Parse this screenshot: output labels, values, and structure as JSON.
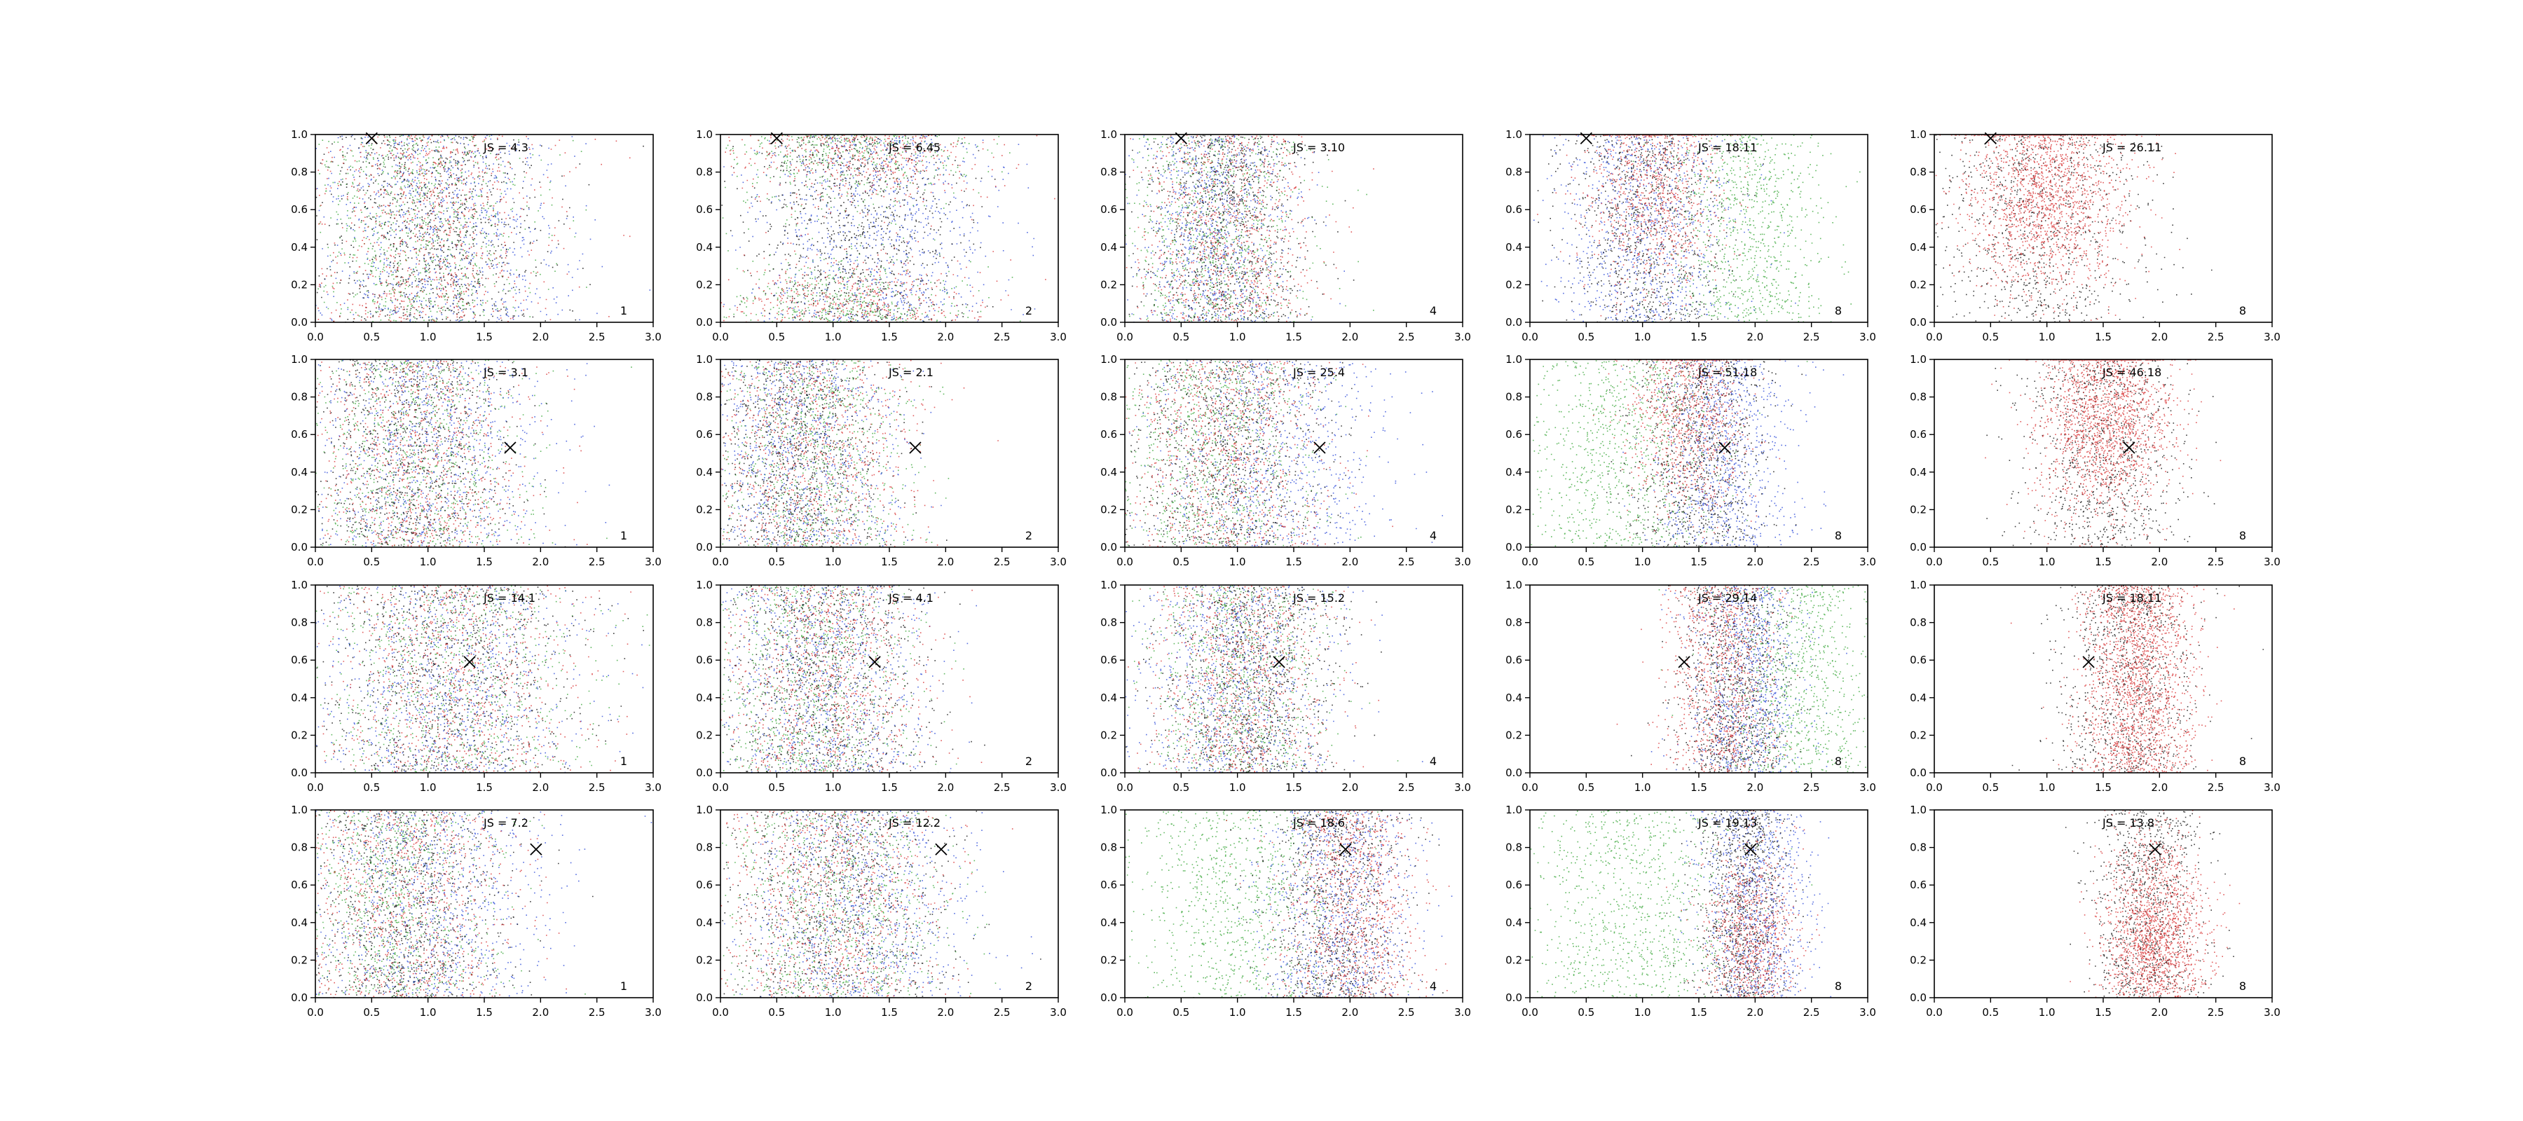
{
  "chart_data": {
    "type": "scatter",
    "description_grid": {
      "rows": 4,
      "cols": 5
    },
    "xlim": [
      0.0,
      3.0
    ],
    "ylim": [
      0.0,
      1.0
    ],
    "xticks": [
      "0.0",
      "0.5",
      "1.0",
      "1.5",
      "2.0",
      "2.5",
      "3.0"
    ],
    "yticks": [
      "0.0",
      "0.2",
      "0.4",
      "0.6",
      "0.8",
      "1.0"
    ],
    "grid": false,
    "colors": {
      "red": "#d62728",
      "blue": "#1f3fd6",
      "green": "#2ca02c",
      "black": "#000000"
    },
    "row_markers": [
      {
        "x": 0.5,
        "y": 0.98
      },
      {
        "x": 1.73,
        "y": 0.53
      },
      {
        "x": 1.37,
        "y": 0.59
      },
      {
        "x": 1.96,
        "y": 0.79
      }
    ],
    "panels": [
      [
        {
          "label": "JS = 4.3",
          "corner": "1",
          "clusters": [
            {
              "color": "red",
              "cx": 1.0,
              "sx": 0.55
            },
            {
              "color": "blue",
              "cx": 1.1,
              "sx": 0.6
            },
            {
              "color": "green",
              "cx": 0.9,
              "sx": 0.5
            },
            {
              "color": "black",
              "cx": 1.0,
              "sx": 0.5
            }
          ]
        },
        {
          "label": "JS = 6.45",
          "corner": "2",
          "clusters": [
            {
              "color": "red",
              "cx": 1.2,
              "sx": 0.6,
              "yw": "edges"
            },
            {
              "color": "blue",
              "cx": 1.4,
              "sx": 0.55
            },
            {
              "color": "green",
              "cx": 1.1,
              "sx": 0.55,
              "yw": "edges"
            },
            {
              "color": "black",
              "cx": 1.2,
              "sx": 0.5
            }
          ]
        },
        {
          "label": "JS = 3.10",
          "corner": "4",
          "clusters": [
            {
              "color": "red",
              "cx": 0.9,
              "sx": 0.4
            },
            {
              "color": "blue",
              "cx": 0.8,
              "sx": 0.35
            },
            {
              "color": "green",
              "cx": 0.8,
              "sx": 0.4
            },
            {
              "color": "black",
              "cx": 0.9,
              "sx": 0.35
            }
          ]
        },
        {
          "label": "JS = 18.11",
          "corner": "8",
          "clusters": [
            {
              "color": "red",
              "cx": 1.1,
              "sx": 0.3,
              "yw": "top"
            },
            {
              "color": "blue",
              "cx": 1.0,
              "sx": 0.4
            },
            {
              "color": "green",
              "cx": 1.9,
              "sx": 0.35
            },
            {
              "color": "black",
              "cx": 1.0,
              "sx": 0.35
            }
          ]
        },
        {
          "label": "JS = 26.11",
          "corner": "8",
          "clusters": [
            {
              "color": "red",
              "cx": 1.0,
              "sx": 0.35,
              "yw": "top",
              "n": 2.0
            },
            {
              "color": "black",
              "cx": 0.9,
              "sx": 0.5
            }
          ]
        }
      ],
      [
        {
          "label": "JS = 3.1",
          "corner": "1",
          "clusters": [
            {
              "color": "red",
              "cx": 0.9,
              "sx": 0.5
            },
            {
              "color": "blue",
              "cx": 1.0,
              "sx": 0.55
            },
            {
              "color": "green",
              "cx": 0.9,
              "sx": 0.5
            },
            {
              "color": "black",
              "cx": 0.8,
              "sx": 0.45
            }
          ]
        },
        {
          "label": "JS = 2.1",
          "corner": "2",
          "clusters": [
            {
              "color": "red",
              "cx": 0.8,
              "sx": 0.45
            },
            {
              "color": "blue",
              "cx": 0.7,
              "sx": 0.45
            },
            {
              "color": "green",
              "cx": 0.8,
              "sx": 0.45
            },
            {
              "color": "black",
              "cx": 0.7,
              "sx": 0.4
            }
          ]
        },
        {
          "label": "JS = 25.4",
          "corner": "4",
          "clusters": [
            {
              "color": "red",
              "cx": 0.9,
              "sx": 0.45
            },
            {
              "color": "blue",
              "cx": 1.3,
              "sx": 0.5
            },
            {
              "color": "green",
              "cx": 0.8,
              "sx": 0.45
            },
            {
              "color": "black",
              "cx": 0.9,
              "sx": 0.45
            }
          ]
        },
        {
          "label": "JS = 51.18",
          "corner": "8",
          "clusters": [
            {
              "color": "red",
              "cx": 1.4,
              "sx": 0.25,
              "yw": "top"
            },
            {
              "color": "blue",
              "cx": 1.7,
              "sx": 0.3
            },
            {
              "color": "green",
              "cx": 0.8,
              "sx": 0.45
            },
            {
              "color": "black",
              "cx": 1.5,
              "sx": 0.3
            }
          ]
        },
        {
          "label": "JS = 46.18",
          "corner": "8",
          "clusters": [
            {
              "color": "red",
              "cx": 1.5,
              "sx": 0.3,
              "yw": "top",
              "n": 2.0
            },
            {
              "color": "black",
              "cx": 1.5,
              "sx": 0.35
            }
          ]
        }
      ],
      [
        {
          "label": "JS = 14.1",
          "corner": "1",
          "clusters": [
            {
              "color": "red",
              "cx": 1.3,
              "sx": 0.6
            },
            {
              "color": "blue",
              "cx": 1.2,
              "sx": 0.6
            },
            {
              "color": "green",
              "cx": 1.2,
              "sx": 0.6
            },
            {
              "color": "black",
              "cx": 1.2,
              "sx": 0.55
            }
          ]
        },
        {
          "label": "JS = 4.1",
          "corner": "2",
          "clusters": [
            {
              "color": "red",
              "cx": 0.9,
              "sx": 0.45
            },
            {
              "color": "blue",
              "cx": 0.9,
              "sx": 0.5
            },
            {
              "color": "green",
              "cx": 0.8,
              "sx": 0.45
            },
            {
              "color": "black",
              "cx": 0.9,
              "sx": 0.45
            }
          ]
        },
        {
          "label": "JS = 15.2",
          "corner": "4",
          "clusters": [
            {
              "color": "red",
              "cx": 1.0,
              "sx": 0.4
            },
            {
              "color": "blue",
              "cx": 1.0,
              "sx": 0.45
            },
            {
              "color": "green",
              "cx": 1.0,
              "sx": 0.4
            },
            {
              "color": "black",
              "cx": 1.1,
              "sx": 0.4
            }
          ]
        },
        {
          "label": "JS = 29.14",
          "corner": "8",
          "clusters": [
            {
              "color": "red",
              "cx": 1.7,
              "sx": 0.25
            },
            {
              "color": "blue",
              "cx": 1.9,
              "sx": 0.25
            },
            {
              "color": "green",
              "cx": 2.4,
              "sx": 0.35
            },
            {
              "color": "black",
              "cx": 1.8,
              "sx": 0.25
            }
          ]
        },
        {
          "label": "JS = 18.11",
          "corner": "8",
          "clusters": [
            {
              "color": "red",
              "cx": 1.8,
              "sx": 0.25,
              "n": 2.0
            },
            {
              "color": "black",
              "cx": 1.7,
              "sx": 0.3
            }
          ]
        }
      ],
      [
        {
          "label": "JS = 7.2",
          "corner": "1",
          "clusters": [
            {
              "color": "red",
              "cx": 0.8,
              "sx": 0.5
            },
            {
              "color": "blue",
              "cx": 1.0,
              "sx": 0.55
            },
            {
              "color": "green",
              "cx": 0.7,
              "sx": 0.45
            },
            {
              "color": "black",
              "cx": 0.8,
              "sx": 0.45
            }
          ]
        },
        {
          "label": "JS = 12.2",
          "corner": "2",
          "clusters": [
            {
              "color": "red",
              "cx": 1.0,
              "sx": 0.5
            },
            {
              "color": "blue",
              "cx": 1.2,
              "sx": 0.5
            },
            {
              "color": "green",
              "cx": 1.0,
              "sx": 0.5
            },
            {
              "color": "black",
              "cx": 1.0,
              "sx": 0.5
            }
          ]
        },
        {
          "label": "JS = 18.6",
          "corner": "4",
          "clusters": [
            {
              "color": "red",
              "cx": 2.0,
              "sx": 0.3
            },
            {
              "color": "blue",
              "cx": 1.9,
              "sx": 0.35
            },
            {
              "color": "green",
              "cx": 1.0,
              "sx": 0.5
            },
            {
              "color": "black",
              "cx": 1.9,
              "sx": 0.3
            }
          ]
        },
        {
          "label": "JS = 19.13",
          "corner": "8",
          "clusters": [
            {
              "color": "red",
              "cx": 1.95,
              "sx": 0.2,
              "yw": "bottom"
            },
            {
              "color": "blue",
              "cx": 2.0,
              "sx": 0.25
            },
            {
              "color": "green",
              "cx": 0.9,
              "sx": 0.5
            },
            {
              "color": "black",
              "cx": 1.9,
              "sx": 0.2
            }
          ]
        },
        {
          "label": "JS = 13.8",
          "corner": "8",
          "clusters": [
            {
              "color": "red",
              "cx": 1.95,
              "sx": 0.22,
              "yw": "bottom",
              "n": 2.0
            },
            {
              "color": "black",
              "cx": 1.9,
              "sx": 0.25
            }
          ]
        }
      ]
    ]
  }
}
